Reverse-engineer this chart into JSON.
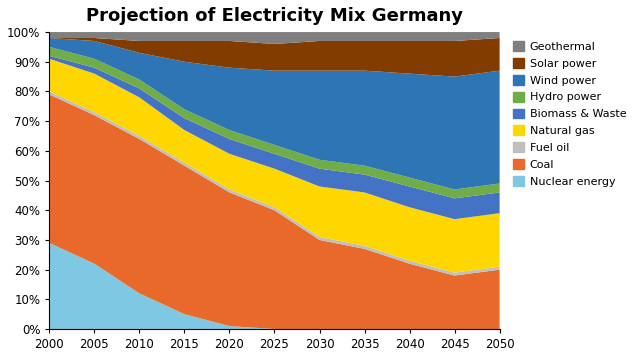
{
  "title": "Projection of Electricity Mix Germany",
  "years": [
    2000,
    2005,
    2010,
    2015,
    2020,
    2025,
    2030,
    2035,
    2040,
    2045,
    2050
  ],
  "series": {
    "Nuclear energy": [
      29,
      22,
      12,
      5,
      1,
      0,
      0,
      0,
      0,
      0,
      0
    ],
    "Coal": [
      50,
      50,
      52,
      50,
      45,
      40,
      30,
      27,
      22,
      18,
      20
    ],
    "Fuel oil": [
      1,
      1,
      1,
      1,
      1,
      1,
      1,
      1,
      1,
      1,
      1
    ],
    "Natural gas": [
      11,
      13,
      13,
      11,
      12,
      13,
      17,
      18,
      18,
      18,
      18
    ],
    "Biomass & Waste": [
      1,
      2,
      3,
      4,
      5,
      5,
      6,
      6,
      7,
      7,
      7
    ],
    "Hydro power": [
      3,
      3,
      3,
      3,
      3,
      3,
      3,
      3,
      3,
      3,
      3
    ],
    "Wind power": [
      3,
      6,
      9,
      16,
      21,
      25,
      30,
      32,
      35,
      38,
      38
    ],
    "Solar power": [
      0,
      1,
      4,
      7,
      9,
      9,
      10,
      10,
      11,
      12,
      11
    ],
    "Geothermal": [
      2,
      2,
      3,
      3,
      3,
      4,
      3,
      3,
      3,
      3,
      2
    ]
  },
  "colors": {
    "Nuclear energy": "#7EC8E3",
    "Coal": "#E8692A",
    "Fuel oil": "#BFBFBF",
    "Natural gas": "#FFD700",
    "Biomass & Waste": "#4472C4",
    "Hydro power": "#70AD47",
    "Wind power": "#2E75B6",
    "Solar power": "#833C00",
    "Geothermal": "#7F7F7F"
  },
  "legend_order": [
    "Geothermal",
    "Solar power",
    "Wind power",
    "Hydro power",
    "Biomass & Waste",
    "Natural gas",
    "Fuel oil",
    "Coal",
    "Nuclear energy"
  ],
  "stack_order": [
    "Nuclear energy",
    "Coal",
    "Fuel oil",
    "Natural gas",
    "Biomass & Waste",
    "Hydro power",
    "Wind power",
    "Solar power",
    "Geothermal"
  ],
  "xlim": [
    2000,
    2050
  ],
  "background_color": "#FFFFFF",
  "title_fontsize": 13
}
